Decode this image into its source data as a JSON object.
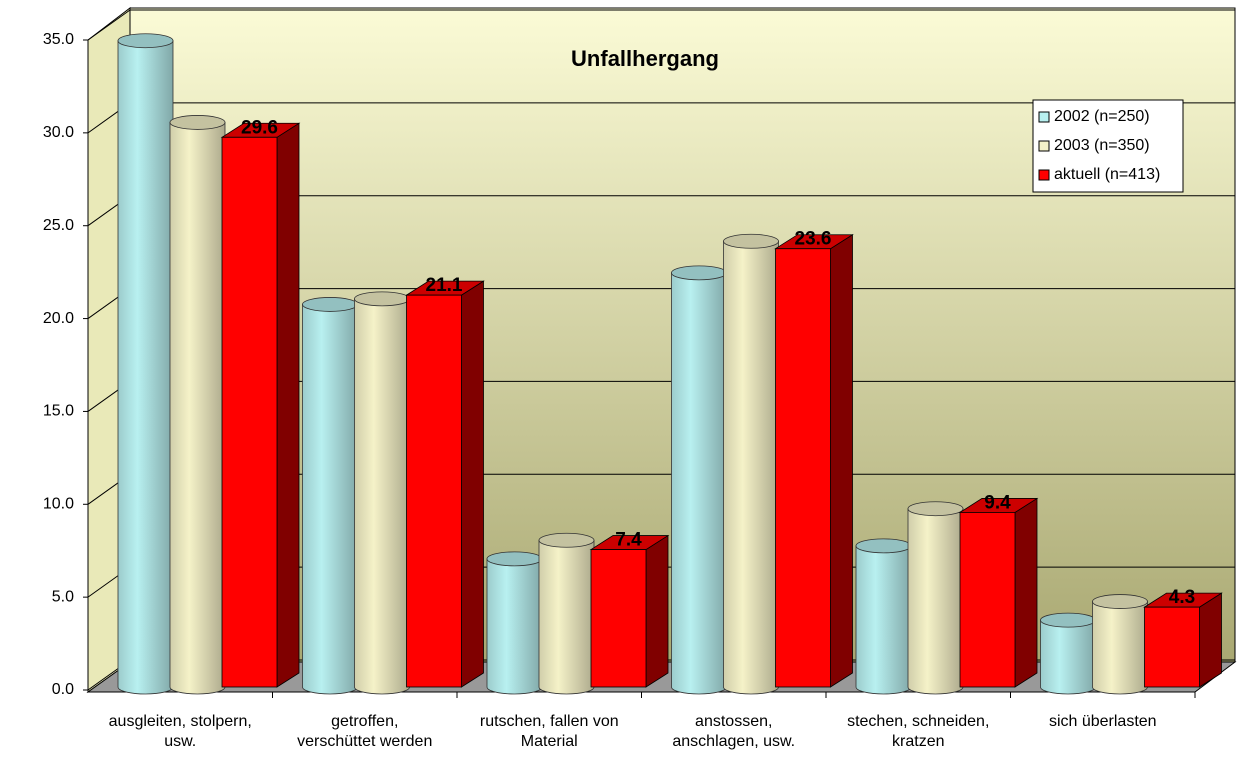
{
  "chart_data": {
    "type": "bar3d",
    "title": "Unfallhergang",
    "categories": [
      [
        "ausgleiten, stolpern,",
        "usw."
      ],
      [
        "getroffen,",
        "verschüttet werden"
      ],
      [
        "rutschen, fallen von",
        "Material"
      ],
      [
        "anstossen,",
        "anschlagen, usw."
      ],
      [
        "stechen, schneiden,",
        "kratzen"
      ],
      [
        "sich überlasten"
      ]
    ],
    "series": [
      {
        "name": "2002 (n=250)",
        "color": "#b8f0f0",
        "shape": "cylinder",
        "values": [
          34.8,
          20.6,
          6.9,
          22.3,
          7.6,
          3.6
        ]
      },
      {
        "name": "2003 (n=350)",
        "color": "#f5f2c8",
        "shape": "cylinder",
        "values": [
          30.4,
          20.9,
          7.9,
          24.0,
          9.6,
          4.6
        ]
      },
      {
        "name": "aktuell (n=413)",
        "color": "#ff0000",
        "shape": "box",
        "show_labels": true,
        "values": [
          29.6,
          21.1,
          7.4,
          23.6,
          9.4,
          4.3
        ]
      }
    ],
    "ylim": [
      0,
      35
    ],
    "yticks": [
      {
        "value": 0,
        "label": "0.0"
      },
      {
        "value": 5,
        "label": "5.0"
      },
      {
        "value": 10,
        "label": "10.0"
      },
      {
        "value": 15,
        "label": "15.0"
      },
      {
        "value": 20,
        "label": "20.0"
      },
      {
        "value": 25,
        "label": "25.0"
      },
      {
        "value": 30,
        "label": "30.0"
      },
      {
        "value": 35,
        "label": "35.0"
      }
    ],
    "grid": true,
    "legend": "top-right"
  }
}
